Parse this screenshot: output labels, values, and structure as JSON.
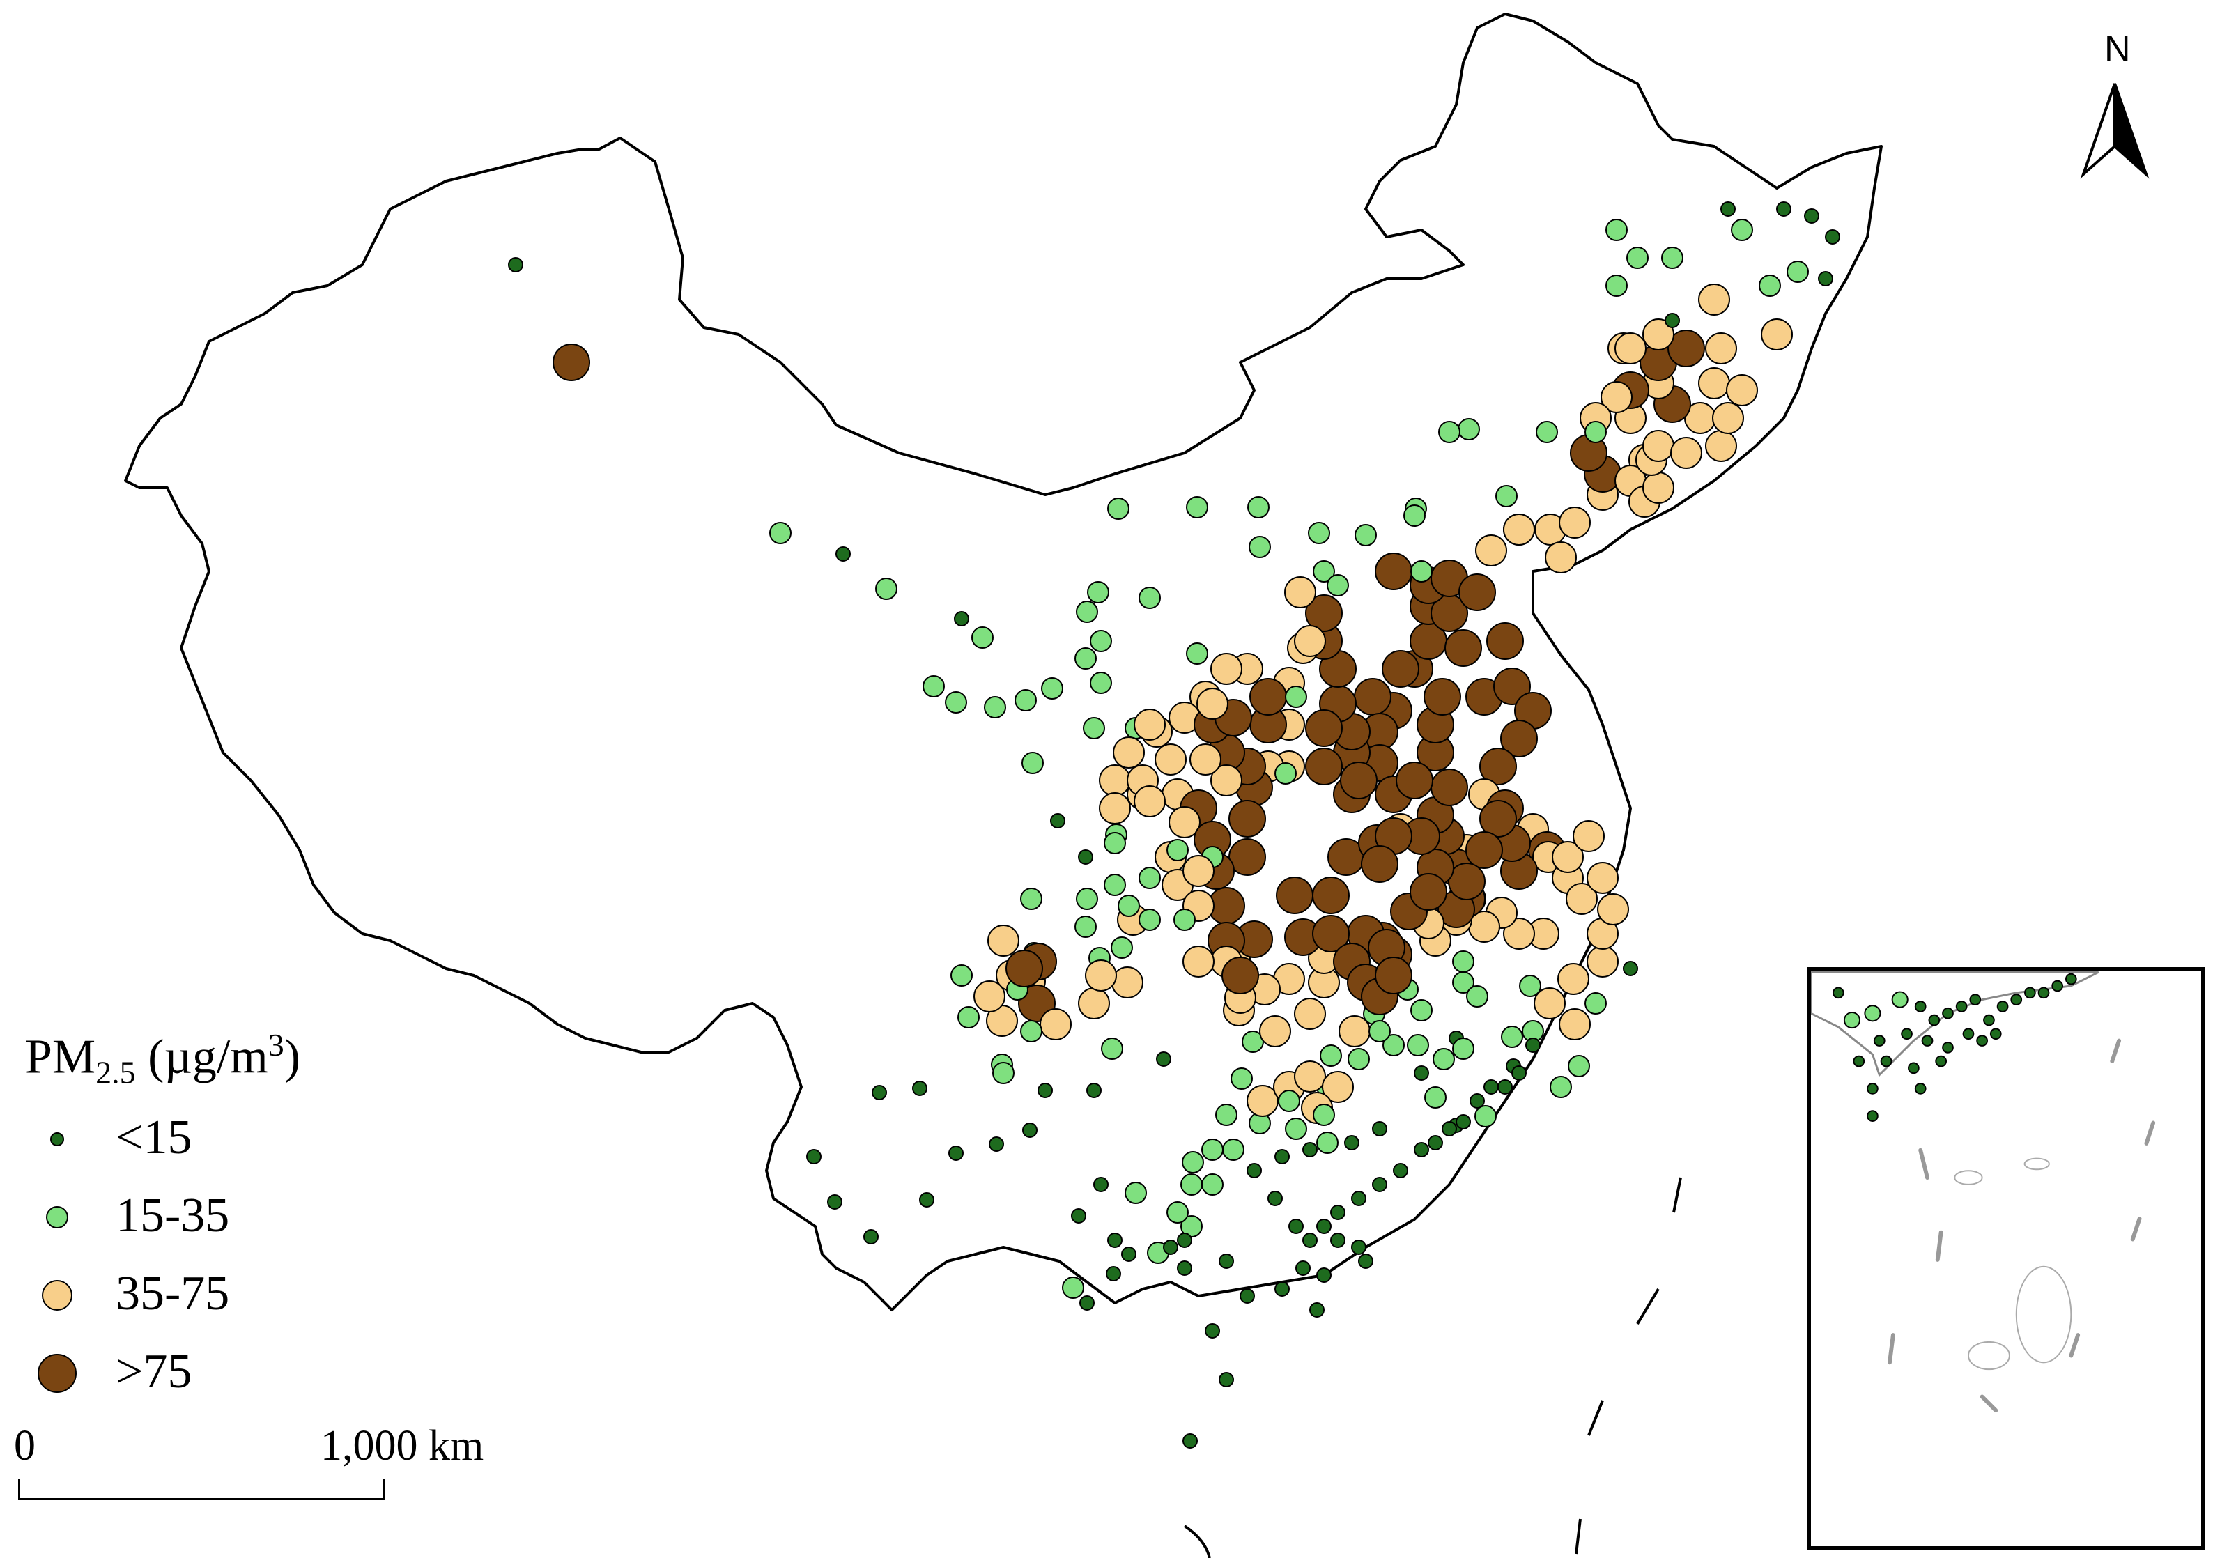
{
  "legend": {
    "title_main": "PM",
    "title_sub": "2.5",
    "title_units_pre": " (µg/m",
    "title_units_sup": "3",
    "title_units_post": ")",
    "classes": [
      {
        "label": "<15",
        "color": "#1e6b1e",
        "icon": "small-dark-green-dot"
      },
      {
        "label": "15-35",
        "color": "#7fe07f",
        "icon": "light-green-circle"
      },
      {
        "label": "35-75",
        "color": "#f8cf8a",
        "icon": "light-orange-circle"
      },
      {
        "label": ">75",
        "color": "#7a4512",
        "icon": "large-brown-circle"
      }
    ]
  },
  "scale_bar": {
    "start_label": "0",
    "end_label": "1,000 km"
  },
  "north_arrow": {
    "label": "N",
    "icon": "north-arrow-icon"
  },
  "inset": {
    "name": "South China Sea inset"
  }
}
